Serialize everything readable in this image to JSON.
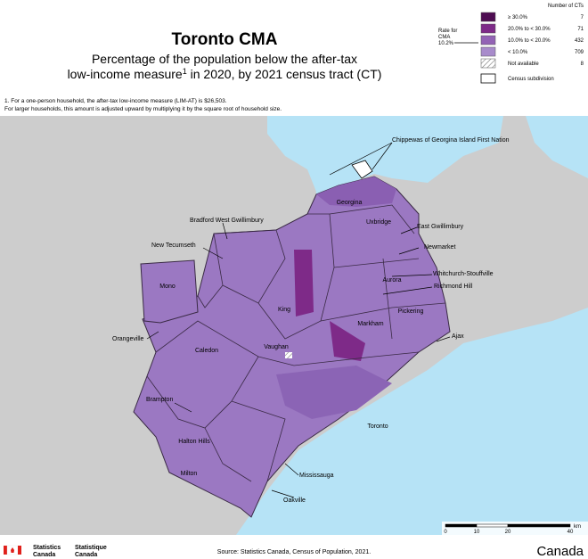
{
  "header": {
    "title": "Toronto CMA",
    "subtitle": {
      "line1": "Percentage of the population below the after-tax",
      "line2_start": "low-income measure",
      "superscript": "1",
      "line2_end": " in 2020, by 2021 census tract (CT)"
    },
    "footnote": [
      "1. For a one-person household, the after-tax low-income measure (LIM-AT) is $26,503.",
      "For larger households, this amount is adjusted upward by multiplying it by the square root of household size."
    ]
  },
  "legend": {
    "count_header": "Number of CTs",
    "rate_label": [
      "Rate for",
      "CMA",
      "10.2%"
    ],
    "items": [
      {
        "label": "≥ 30.0%",
        "count": 7,
        "color": "#4e0c52"
      },
      {
        "label": "20.0% to < 30.0%",
        "count": 71,
        "color": "#7e2a88"
      },
      {
        "label": "10.0% to < 20.0%",
        "count": 432,
        "color": "#9363b5"
      },
      {
        "label": "< 10.0%",
        "count": 709,
        "color": "#a88bcb"
      },
      {
        "label": "Not available",
        "count": 8,
        "color": "hatch"
      }
    ],
    "subdivision": "Census subdivision"
  },
  "places": [
    "Chippewas of Georgina Island First Nation",
    "Georgina",
    "Bradford West Gwillimbury",
    "East Gwillimbury",
    "Uxbridge",
    "New Tecumseth",
    "Newmarket",
    "Whitchurch-Stouffville",
    "Richmond Hill",
    "Aurora",
    "Mono",
    "King",
    "Markham",
    "Pickering",
    "Ajax",
    "Orangeville",
    "Caledon",
    "Vaughan",
    "Brampton",
    "Toronto",
    "Halton Hills",
    "Mississauga",
    "Milton",
    "Oakville"
  ],
  "scale_bar": {
    "unit": "km",
    "ticks": [
      0,
      10,
      20,
      40
    ]
  },
  "footer": {
    "agency_en": [
      "Statistics",
      "Canada"
    ],
    "agency_fr": [
      "Statistique",
      "Canada"
    ],
    "source": "Source: Statistics Canada, Census of Population, 2021.",
    "wordmark": "Canada"
  }
}
